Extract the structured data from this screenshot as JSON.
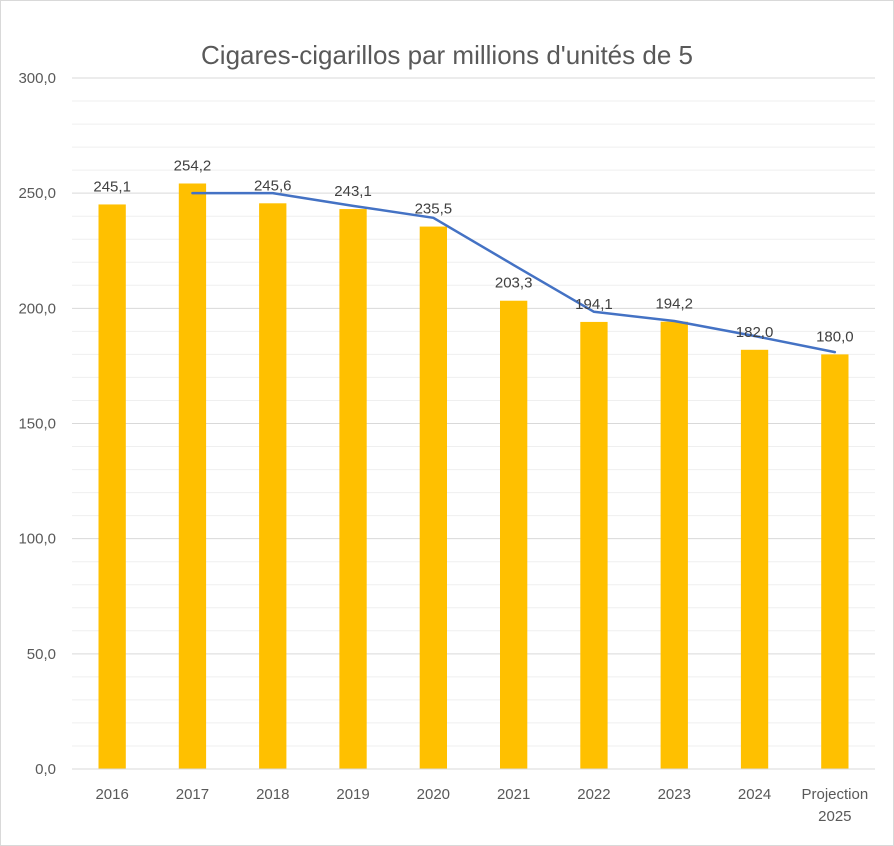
{
  "chart_data": {
    "type": "bar",
    "title": "Cigares-cigarillos  par millions d'unités de 5",
    "categories": [
      [
        "2016"
      ],
      [
        "2017"
      ],
      [
        "2018"
      ],
      [
        "2019"
      ],
      [
        "2020"
      ],
      [
        "2021"
      ],
      [
        "2022"
      ],
      [
        "2023"
      ],
      [
        "2024"
      ],
      [
        "Projection",
        "2025"
      ]
    ],
    "series": [
      {
        "type": "bar",
        "values": [
          245.1,
          254.2,
          245.6,
          243.1,
          235.5,
          203.3,
          194.1,
          194.2,
          182.0,
          180.0
        ],
        "data_labels": [
          "245,1",
          "254,2",
          "245,6",
          "243,1",
          "235,5",
          "203,3",
          "194,1",
          "194,2",
          "182,0",
          "180,0"
        ],
        "color": "#FFC000"
      },
      {
        "type": "line",
        "values": [
          null,
          250.0,
          250.0,
          244.5,
          239.3,
          218.8,
          198.5,
          194.5,
          188.0,
          181.0
        ],
        "color": "#4472C4"
      }
    ],
    "y_ticks": [
      "0,0",
      "50,0",
      "100,0",
      "150,0",
      "200,0",
      "250,0",
      "300,0"
    ],
    "ylim": [
      0,
      300
    ],
    "y_major_step": 50,
    "y_minor_step": 10,
    "grid": true,
    "legend": "none"
  }
}
